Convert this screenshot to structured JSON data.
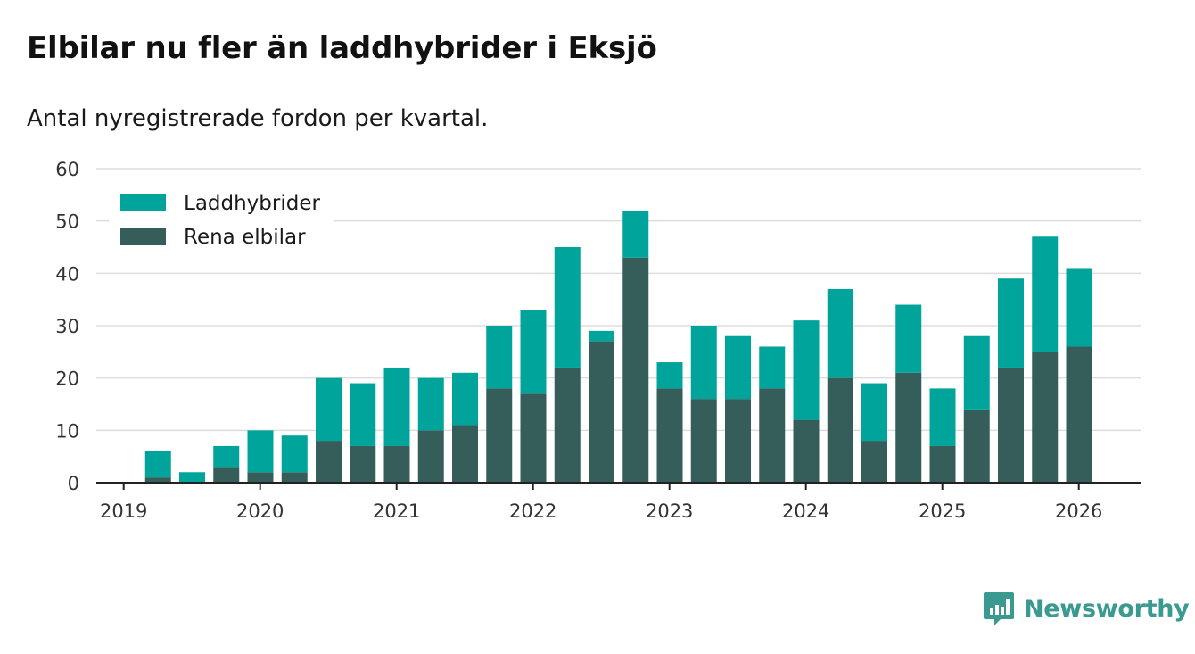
{
  "title": "Elbilar nu fler än laddhybrider i Eksjö",
  "subtitle": "Antal nyregistrerade fordon per kvartal.",
  "brand": {
    "name": "Newsworthy",
    "icon": "newsworthy-logo-icon"
  },
  "colors": {
    "laddhybrider": "#00a49a",
    "rena_elbilar": "#355e5b",
    "grid": "#dddddd",
    "axis": "#222222"
  },
  "chart_data": {
    "type": "bar",
    "stacked": true,
    "title": "Elbilar nu fler än laddhybrider i Eksjö",
    "subtitle": "Antal nyregistrerade fordon per kvartal.",
    "xlabel": "",
    "ylabel": "",
    "ylim": [
      0,
      60
    ],
    "yticks": [
      0,
      10,
      20,
      30,
      40,
      50,
      60
    ],
    "xticks": [
      "2019",
      "2020",
      "2021",
      "2022",
      "2023",
      "2024",
      "2025",
      "2026"
    ],
    "categories": [
      "2019 Q1",
      "2019 Q2",
      "2019 Q3",
      "2019 Q4",
      "2020 Q1",
      "2020 Q2",
      "2020 Q3",
      "2020 Q4",
      "2021 Q1",
      "2021 Q2",
      "2021 Q3",
      "2021 Q4",
      "2022 Q1",
      "2022 Q2",
      "2022 Q3",
      "2022 Q4",
      "2023 Q1",
      "2023 Q2",
      "2023 Q3",
      "2023 Q4",
      "2024 Q1",
      "2024 Q2",
      "2024 Q3",
      "2024 Q4",
      "2025 Q1",
      "2025 Q2",
      "2025 Q3",
      "2025 Q4",
      "2026 Q1"
    ],
    "grid": true,
    "legend": "top-left",
    "series": [
      {
        "name": "Rena elbilar",
        "color": "#355e5b",
        "values": [
          0,
          1,
          0,
          3,
          2,
          2,
          8,
          7,
          7,
          10,
          11,
          18,
          17,
          22,
          27,
          43,
          18,
          16,
          16,
          18,
          12,
          20,
          8,
          21,
          7,
          14,
          22,
          25,
          26
        ]
      },
      {
        "name": "Laddhybrider",
        "color": "#00a49a",
        "values": [
          0,
          5,
          2,
          4,
          8,
          7,
          12,
          12,
          15,
          10,
          10,
          12,
          16,
          23,
          2,
          9,
          5,
          14,
          12,
          8,
          19,
          17,
          11,
          13,
          11,
          14,
          17,
          22,
          15
        ]
      }
    ],
    "legend_order": [
      "Laddhybrider",
      "Rena elbilar"
    ]
  }
}
